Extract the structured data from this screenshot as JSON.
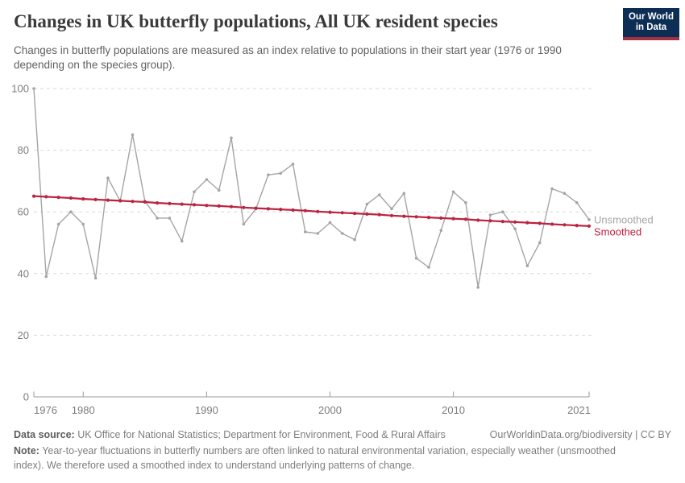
{
  "header": {
    "title": "Changes in UK butterfly populations, All UK resident species",
    "subtitle": "Changes in butterfly populations are measured as an index relative to populations in their start year (1976 or 1990 depending on the species group).",
    "logo": {
      "line1": "Our World",
      "line2": "in Data"
    }
  },
  "chart_data": {
    "type": "line",
    "title": "Changes in UK butterfly populations, All UK resident species",
    "xlabel": "",
    "ylabel": "",
    "ylim": [
      0,
      100
    ],
    "yticks": [
      0,
      20,
      40,
      60,
      80,
      100
    ],
    "xticks": [
      1976,
      1980,
      1990,
      2000,
      2010,
      2021
    ],
    "grid": "dashed-horizontal",
    "legend_position": "right-of-line-end",
    "x": [
      1976,
      1977,
      1978,
      1979,
      1980,
      1981,
      1982,
      1983,
      1984,
      1985,
      1986,
      1987,
      1988,
      1989,
      1990,
      1991,
      1992,
      1993,
      1994,
      1995,
      1996,
      1997,
      1998,
      1999,
      2000,
      2001,
      2002,
      2003,
      2004,
      2005,
      2006,
      2007,
      2008,
      2009,
      2010,
      2011,
      2012,
      2013,
      2014,
      2015,
      2016,
      2017,
      2018,
      2019,
      2020,
      2021
    ],
    "series": [
      {
        "name": "Unsmoothed",
        "color": "#a5a5a5",
        "values": [
          100,
          39,
          56,
          60,
          56,
          38.5,
          71,
          63.5,
          85,
          63.5,
          58,
          58,
          50.5,
          66.5,
          70.5,
          67,
          84,
          56,
          61,
          72,
          72.5,
          75.5,
          53.5,
          53,
          56.5,
          53,
          51,
          62.5,
          65.5,
          61,
          66,
          45,
          42,
          54,
          66.5,
          63,
          35.5,
          59,
          60,
          54.5,
          42.5,
          50,
          67.5,
          66,
          63,
          57.5
        ]
      },
      {
        "name": "Smoothed",
        "color": "#bd2240",
        "values": [
          65.1,
          64.9,
          64.7,
          64.5,
          64.2,
          64,
          63.8,
          63.6,
          63.4,
          63.2,
          62.9,
          62.7,
          62.5,
          62.3,
          62.1,
          61.9,
          61.7,
          61.4,
          61.2,
          61,
          60.8,
          60.6,
          60.4,
          60.1,
          59.9,
          59.7,
          59.5,
          59.3,
          59.1,
          58.8,
          58.6,
          58.4,
          58.2,
          58,
          57.8,
          57.6,
          57.3,
          57.1,
          56.9,
          56.7,
          56.5,
          56.3,
          56,
          55.8,
          55.6,
          55.4
        ]
      }
    ]
  },
  "footer": {
    "datasource_label": "Data source:",
    "datasource_text": " UK Office for National Statistics; Department for Environment, Food & Rural Affairs",
    "attribution": "OurWorldinData.org/biodiversity | CC BY",
    "note_label": "Note:",
    "note_text": " Year-to-year fluctuations in butterfly numbers are often linked to natural environmental variation, especially weather (unsmoothed index). We therefore used a smoothed index to understand underlying patterns of change."
  },
  "colors": {
    "accent_red": "#bd2240",
    "series_gray": "#a5a5a5",
    "gridline": "#d9d9d9",
    "axis": "#9a9a9a",
    "tick_label": "#7d7d7d",
    "logo_navy": "#0d2e54",
    "logo_red": "#a52e44"
  }
}
